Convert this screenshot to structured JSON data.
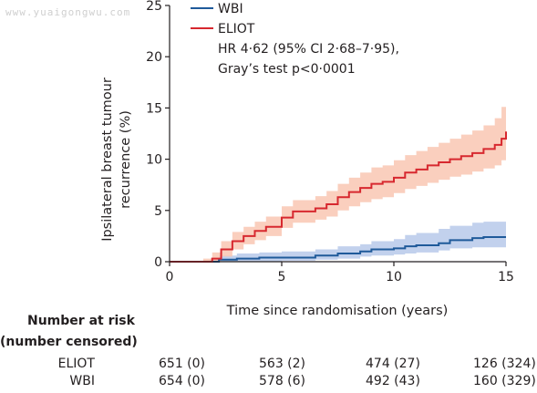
{
  "watermark": "www.yuaigongwu.com",
  "colors": {
    "eliot": "#d7282f",
    "eliot_band": "#f9c7b3",
    "wbi": "#1f5a9a",
    "wbi_band": "#b7c9ea",
    "axis": "#231f20"
  },
  "chart_data": {
    "type": "line",
    "title": "",
    "xlabel": "Time since randomisation (years)",
    "ylabel_lines": [
      "Ipsilateral breast tumour",
      "recurrence (%)"
    ],
    "xlim": [
      0,
      15
    ],
    "ylim": [
      0,
      25
    ],
    "x_ticks": [
      0,
      5,
      10,
      15
    ],
    "y_ticks": [
      0,
      5,
      10,
      15,
      20,
      25
    ],
    "grid": false,
    "legend_position": "top-left",
    "annotation_lines": [
      "HR 4·62 (95% CI 2·68–7·95),",
      "Gray’s test p<0·0001"
    ],
    "series": [
      {
        "name": "WBI",
        "color_key": "wbi",
        "x": [
          0,
          1.8,
          2.2,
          3.0,
          4.0,
          5.0,
          6.5,
          7.5,
          8.5,
          9.0,
          10.0,
          10.5,
          11.0,
          12.0,
          12.5,
          13.5,
          14.0,
          15.0
        ],
        "y": [
          0,
          0,
          0.2,
          0.3,
          0.4,
          0.4,
          0.6,
          0.8,
          1.0,
          1.2,
          1.3,
          1.5,
          1.6,
          1.8,
          2.1,
          2.3,
          2.4,
          2.4
        ],
        "lower": [
          0,
          0,
          0,
          0,
          0.05,
          0.1,
          0.2,
          0.3,
          0.5,
          0.6,
          0.7,
          0.8,
          0.9,
          1.1,
          1.3,
          1.4,
          1.4,
          1.4
        ],
        "upper": [
          0,
          0.2,
          0.6,
          0.8,
          0.9,
          1.0,
          1.2,
          1.5,
          1.7,
          2.0,
          2.2,
          2.6,
          2.8,
          3.2,
          3.5,
          3.8,
          3.9,
          3.9
        ]
      },
      {
        "name": "ELIOT",
        "color_key": "eliot",
        "x": [
          0,
          1.5,
          1.9,
          2.3,
          2.8,
          3.3,
          3.8,
          4.3,
          5.0,
          5.5,
          6.5,
          7.0,
          7.5,
          8.0,
          8.5,
          9.0,
          9.5,
          10.0,
          10.5,
          11.0,
          11.5,
          12.0,
          12.5,
          13.0,
          13.5,
          14.0,
          14.5,
          14.8,
          15.0
        ],
        "y": [
          0,
          0,
          0.3,
          1.2,
          2.0,
          2.5,
          3.0,
          3.4,
          4.3,
          4.9,
          5.2,
          5.6,
          6.3,
          6.8,
          7.2,
          7.6,
          7.8,
          8.2,
          8.7,
          9.0,
          9.4,
          9.7,
          10.0,
          10.3,
          10.6,
          11.0,
          11.4,
          12.0,
          12.7
        ],
        "lower": [
          0,
          0,
          0,
          0.5,
          1.2,
          1.7,
          2.1,
          2.5,
          3.3,
          3.8,
          4.1,
          4.4,
          5.0,
          5.4,
          5.8,
          6.1,
          6.3,
          6.7,
          7.1,
          7.4,
          7.7,
          8.0,
          8.3,
          8.5,
          8.8,
          9.1,
          9.4,
          9.9,
          10.2
        ],
        "upper": [
          0,
          0.3,
          0.9,
          2.0,
          2.9,
          3.4,
          3.9,
          4.4,
          5.4,
          6.0,
          6.4,
          6.9,
          7.6,
          8.2,
          8.7,
          9.2,
          9.4,
          9.9,
          10.4,
          10.8,
          11.2,
          11.6,
          12.0,
          12.4,
          12.8,
          13.3,
          14.0,
          15.1,
          16.0
        ]
      }
    ]
  },
  "risk_table": {
    "heading_line1": "Number at risk",
    "heading_line2": "(number censored)",
    "rows": [
      {
        "label": "ELIOT",
        "values": [
          "651 (0)",
          "563 (2)",
          "474 (27)",
          "126 (324)"
        ]
      },
      {
        "label": "WBI",
        "values": [
          "654 (0)",
          "578 (6)",
          "492 (43)",
          "160 (329)"
        ]
      }
    ]
  }
}
